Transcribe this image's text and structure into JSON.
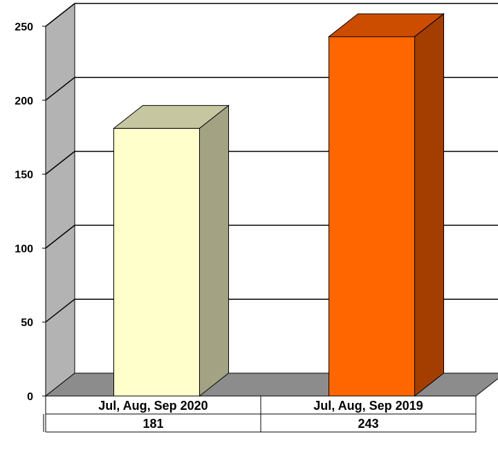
{
  "chart_data": {
    "type": "bar",
    "categories": [
      "Jul, Aug, Sep 2020",
      "Jul, Aug, Sep 2019"
    ],
    "values": [
      181,
      243
    ],
    "value_labels": [
      "181",
      "243"
    ],
    "ylim": [
      0,
      250
    ],
    "yticks": [
      0,
      50,
      100,
      150,
      200,
      250
    ],
    "ytick_labels": [
      "0",
      "50",
      "100",
      "150",
      "200",
      "250"
    ],
    "grid": true,
    "three_d": true,
    "data_table": true,
    "bar_colors": [
      {
        "front": "#FFFFCC",
        "top": "#C6C6A0",
        "side": "#A3A384"
      },
      {
        "front": "#FF6600",
        "top": "#CC4D00",
        "side": "#A33D00"
      }
    ],
    "colors": {
      "wall": "#FFFFFF",
      "side_wall": "#B3B3B3",
      "floor": "#8C8C8C",
      "grid": "#000000"
    }
  }
}
